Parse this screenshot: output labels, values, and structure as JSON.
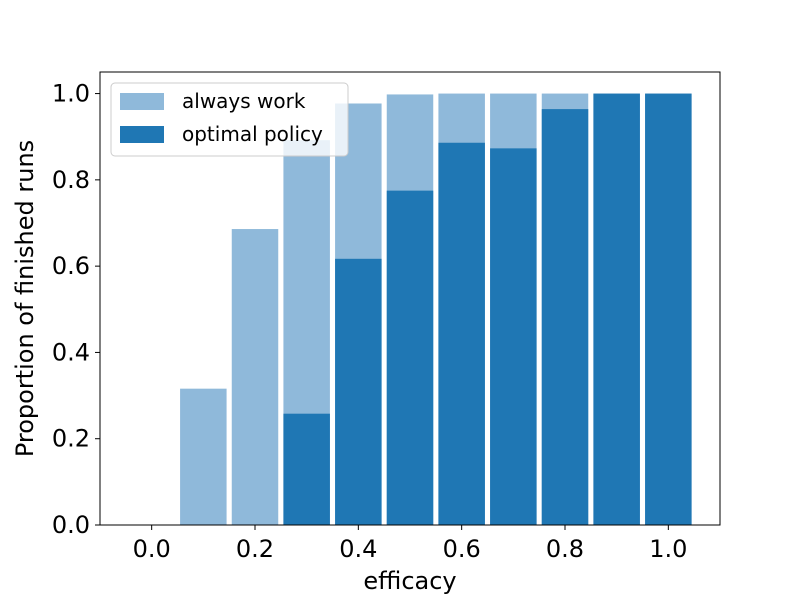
{
  "chart_data": {
    "type": "bar",
    "title": "",
    "xlabel": "efficacy",
    "ylabel": "Proportion of finished runs",
    "x": [
      0.0,
      0.1,
      0.2,
      0.3,
      0.4,
      0.5,
      0.6,
      0.7,
      0.8,
      0.9,
      1.0
    ],
    "bar_width": 0.09,
    "xlim": [
      -0.1,
      1.1
    ],
    "ylim": [
      0.0,
      1.05
    ],
    "xticks": [
      0.0,
      0.2,
      0.4,
      0.6,
      0.8,
      1.0
    ],
    "xtick_labels": [
      "0.0",
      "0.2",
      "0.4",
      "0.6",
      "0.8",
      "1.0"
    ],
    "yticks": [
      0.0,
      0.2,
      0.4,
      0.6,
      0.8,
      1.0
    ],
    "ytick_labels": [
      "0.0",
      "0.2",
      "0.4",
      "0.6",
      "0.8",
      "1.0"
    ],
    "grid": false,
    "legend_position": "top-left",
    "series": [
      {
        "name": "always work",
        "color": "#8fb9da",
        "values": [
          0.0,
          0.316,
          0.686,
          0.892,
          0.977,
          0.998,
          1.0,
          1.0,
          1.0,
          1.0,
          1.0
        ]
      },
      {
        "name": "optimal policy",
        "color": "#1f77b4",
        "values": [
          0.0,
          0.0,
          0.0,
          0.258,
          0.617,
          0.775,
          0.886,
          0.873,
          0.964,
          1.0,
          1.0
        ]
      }
    ]
  }
}
